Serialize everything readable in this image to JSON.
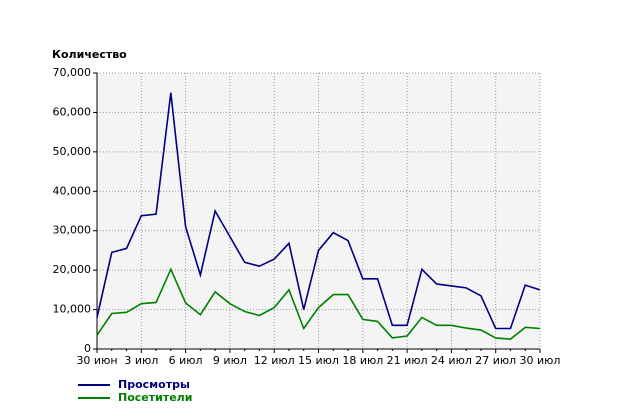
{
  "chart_data": {
    "type": "line",
    "y_label": "Количество",
    "categories": [
      "30 июн",
      null,
      null,
      "3 июл",
      null,
      null,
      "6 июл",
      null,
      null,
      "9 июл",
      null,
      null,
      "12 июл",
      null,
      null,
      "15 июл",
      null,
      null,
      "18 июл",
      null,
      null,
      "21 июл",
      null,
      null,
      "24 июл",
      null,
      null,
      "27 июл",
      null,
      null,
      "30 июл"
    ],
    "series": [
      {
        "name": "Просмотры",
        "color": "#000080",
        "values": [
          8000,
          24500,
          25500,
          33800,
          34200,
          65000,
          31000,
          18800,
          35000,
          28500,
          22000,
          21000,
          22800,
          26800,
          10000,
          25000,
          29500,
          27500,
          17800,
          17800,
          6000,
          6000,
          20200,
          16500,
          16000,
          15500,
          13500,
          5200,
          5200,
          16200,
          15000
        ]
      },
      {
        "name": "Посетители",
        "color": "#008000",
        "values": [
          3500,
          9000,
          9300,
          11500,
          11800,
          20200,
          11700,
          8700,
          14500,
          11500,
          9500,
          8500,
          10500,
          15000,
          5200,
          10500,
          13800,
          13800,
          7500,
          7000,
          2800,
          3300,
          8000,
          6000,
          6000,
          5300,
          4800,
          2800,
          2500,
          5500,
          5200
        ]
      }
    ],
    "ylim": [
      0,
      70000
    ],
    "yticks": [
      0,
      {
        "value": 10000,
        "label": "10,000"
      },
      {
        "value": 20000,
        "label": "20,000"
      },
      {
        "value": 30000,
        "label": "30,000"
      },
      {
        "value": 40000,
        "label": "40,000"
      },
      {
        "value": 50000,
        "label": "50,000"
      },
      {
        "value": 60000,
        "label": "60,000"
      },
      {
        "value": 70000,
        "label": "70,000"
      }
    ],
    "grid": true,
    "legend": "bottom-left"
  }
}
